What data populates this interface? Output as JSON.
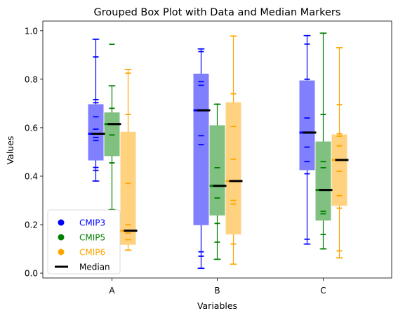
{
  "chart_data": {
    "type": "box",
    "title": "Grouped Box Plot with Data and Median Markers",
    "xlabel": "Variables",
    "ylabel": "Values",
    "categories": [
      "A",
      "B",
      "C"
    ],
    "ylim": [
      -0.02,
      1.04
    ],
    "yticks": [
      "0.0",
      "0.2",
      "0.4",
      "0.6",
      "0.8",
      "1.0"
    ],
    "legend": {
      "placement": "lower-left",
      "entries": [
        {
          "label": "CMIP3",
          "color": "#0000ff"
        },
        {
          "label": "CMIP5",
          "color": "#008000"
        },
        {
          "label": "CMIP6",
          "color": "#ffa500"
        },
        {
          "label": "Median",
          "color": "#000000"
        }
      ],
      "median_label": "Median"
    },
    "series": [
      {
        "name": "CMIP3",
        "color": "#0000ff",
        "box_color": "#8080ff",
        "boxes": [
          {
            "q1": 0.465,
            "median": 0.575,
            "q3": 0.697,
            "whisker_low": 0.38,
            "whisker_high": 0.965,
            "points": [
              0.965,
              0.892,
              0.716,
              0.703,
              0.645,
              0.594,
              0.56,
              0.547,
              0.436,
              0.424,
              0.38
            ]
          },
          {
            "q1": 0.198,
            "median": 0.672,
            "q3": 0.823,
            "whisker_low": 0.02,
            "whisker_high": 0.925,
            "points": [
              0.925,
              0.914,
              0.79,
              0.775,
              0.567,
              0.53,
              0.088,
              0.07,
              0.02
            ]
          },
          {
            "q1": 0.425,
            "median": 0.58,
            "q3": 0.795,
            "whisker_low": 0.12,
            "whisker_high": 0.98,
            "points": [
              0.98,
              0.945,
              0.8,
              0.64,
              0.52,
              0.46,
              0.41,
              0.14,
              0.12
            ]
          }
        ]
      },
      {
        "name": "CMIP5",
        "color": "#008000",
        "box_color": "#80c080",
        "boxes": [
          {
            "q1": 0.483,
            "median": 0.615,
            "q3": 0.663,
            "whisker_low": 0.262,
            "whisker_high": 0.773,
            "points": [
              0.944,
              0.773,
              0.68,
              0.57,
              0.455,
              0.262
            ]
          },
          {
            "q1": 0.238,
            "median": 0.36,
            "q3": 0.61,
            "whisker_low": 0.057,
            "whisker_high": 0.697,
            "points": [
              0.697,
              0.435,
              0.31,
              0.205,
              0.128,
              0.057
            ]
          },
          {
            "q1": 0.217,
            "median": 0.343,
            "q3": 0.543,
            "whisker_low": 0.1,
            "whisker_high": 0.99,
            "points": [
              0.99,
              0.655,
              0.46,
              0.435,
              0.255,
              0.245,
              0.16,
              0.1
            ]
          }
        ]
      },
      {
        "name": "CMIP6",
        "color": "#ffa500",
        "box_color": "#ffd280",
        "boxes": [
          {
            "q1": 0.117,
            "median": 0.175,
            "q3": 0.583,
            "whisker_low": 0.095,
            "whisker_high": 0.84,
            "points": [
              0.84,
              0.825,
              0.655,
              0.37,
              0.2,
              0.165,
              0.138,
              0.095
            ]
          },
          {
            "q1": 0.16,
            "median": 0.38,
            "q3": 0.705,
            "whisker_low": 0.037,
            "whisker_high": 0.978,
            "points": [
              0.978,
              0.74,
              0.605,
              0.47,
              0.3,
              0.285,
              0.12,
              0.037
            ]
          },
          {
            "q1": 0.278,
            "median": 0.467,
            "q3": 0.572,
            "whisker_low": 0.063,
            "whisker_high": 0.93,
            "points": [
              0.93,
              0.695,
              0.575,
              0.565,
              0.525,
              0.42,
              0.32,
              0.268,
              0.092,
              0.063
            ]
          }
        ]
      }
    ]
  }
}
